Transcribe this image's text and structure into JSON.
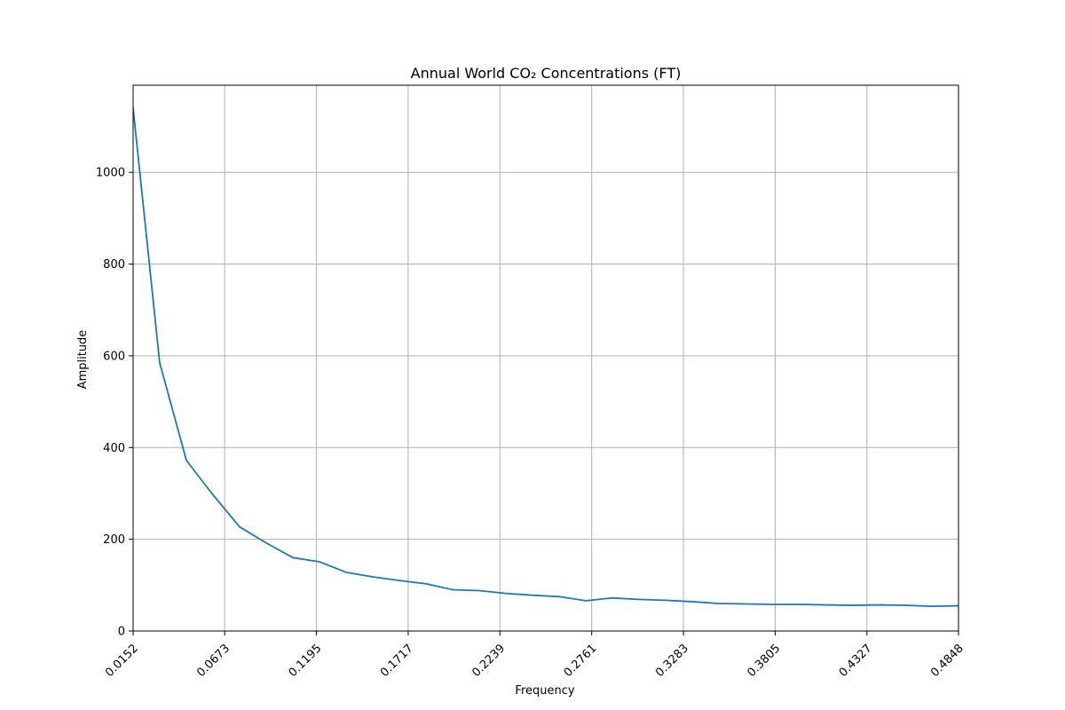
{
  "chart_data": {
    "type": "line",
    "title": "Annual World CO₂ Concentrations (FT)",
    "xlabel": "Frequency",
    "ylabel": "Amplitude",
    "xlim": [
      0.0152,
      0.4848
    ],
    "ylim": [
      0,
      1190
    ],
    "grid": true,
    "line_color": "#1f77b4",
    "x_ticks": [
      "0.0152",
      "0.0673",
      "0.1195",
      "0.1717",
      "0.2239",
      "0.2761",
      "0.3283",
      "0.3805",
      "0.4327",
      "0.4848"
    ],
    "y_ticks": [
      "0",
      "200",
      "400",
      "600",
      "800",
      "1000"
    ],
    "series": [
      {
        "x": [
          0.0152,
          0.0303,
          0.0455,
          0.0606,
          0.0758,
          0.0909,
          0.1061,
          0.1212,
          0.1364,
          0.1515,
          0.1667,
          0.1818,
          0.197,
          0.2121,
          0.2273,
          0.2424,
          0.2576,
          0.2727,
          0.2879,
          0.303,
          0.3182,
          0.3333,
          0.3485,
          0.3636,
          0.3788,
          0.3939,
          0.4091,
          0.4242,
          0.4394,
          0.4545,
          0.4697,
          0.4848
        ],
        "y": [
          1140,
          585,
          372,
          297,
          227,
          192,
          160,
          151,
          128,
          118,
          110,
          103,
          90,
          88,
          82,
          78,
          75,
          66,
          72,
          69,
          67,
          64,
          60,
          59,
          58,
          58,
          57,
          56,
          57,
          56,
          54,
          55
        ]
      }
    ]
  }
}
